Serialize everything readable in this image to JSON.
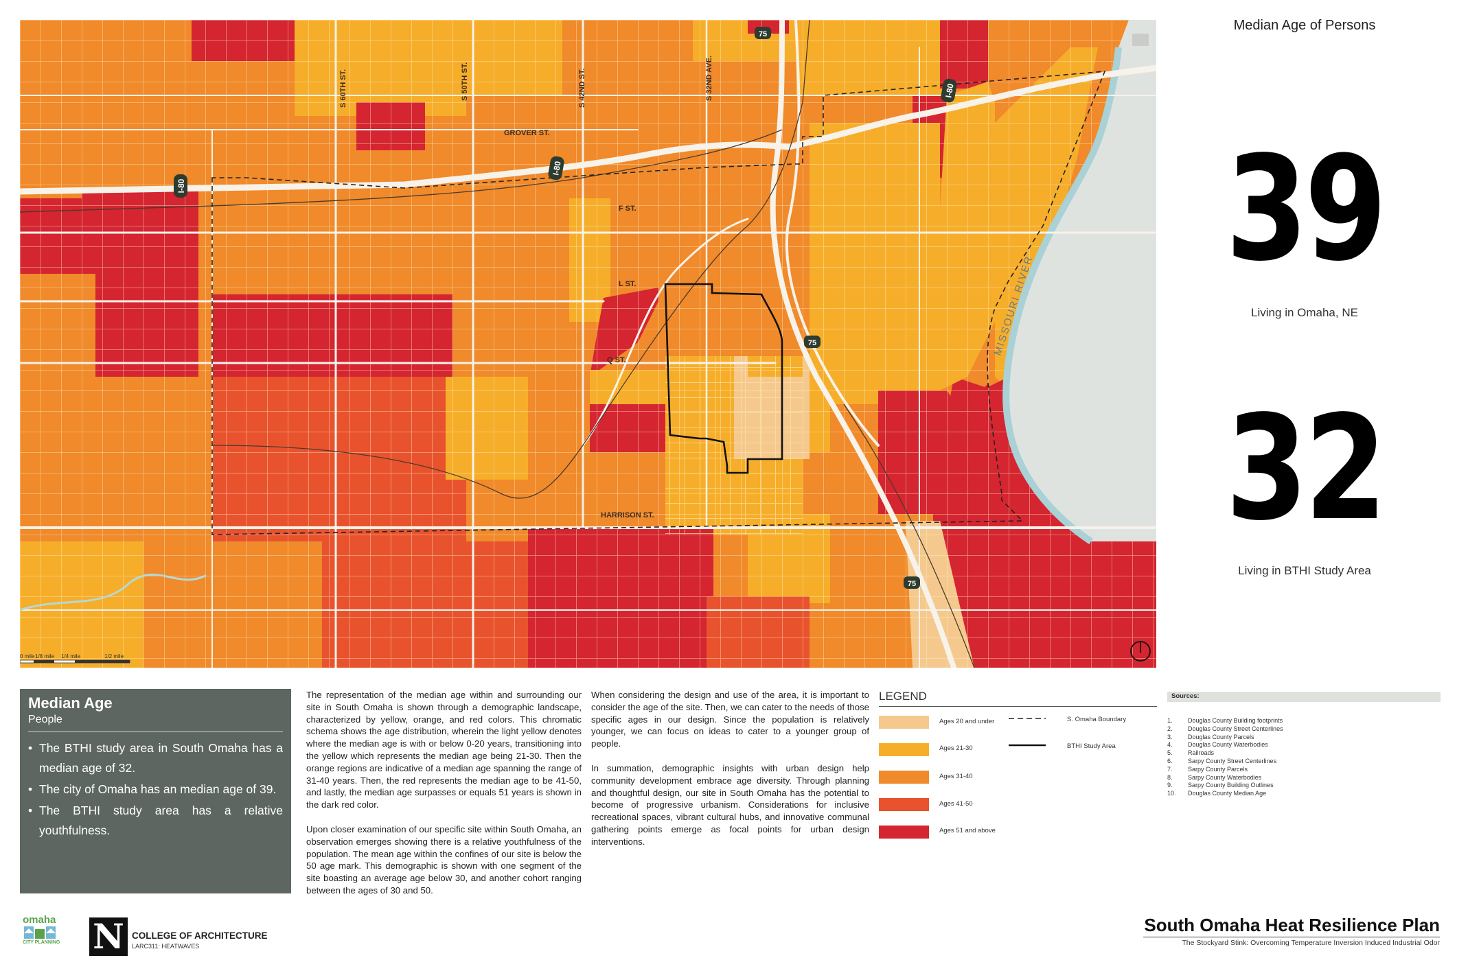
{
  "map": {
    "streets": [
      "GROVER ST.",
      "F ST.",
      "L ST.",
      "Q ST.",
      "HARRISON ST.",
      "S 60TH ST.",
      "S 50TH ST.",
      "S 42ND ST.",
      "S 32ND AVE."
    ],
    "river": "MISSOURI RIVER",
    "highways": [
      "I-80",
      "I-80",
      "I-80",
      "75",
      "75",
      "75"
    ],
    "scale_labels": [
      "0 mile",
      "1/8 mile",
      "1/4 mile",
      "1/2 mile"
    ]
  },
  "stats": {
    "title": "Median Age of Persons",
    "omaha_value": "39",
    "omaha_label": "Living in Omaha, NE",
    "bthi_value": "32",
    "bthi_label": "Living in BTHI Study Area"
  },
  "summary": {
    "title": "Median Age",
    "subtitle": "People",
    "bullets": [
      "The BTHI study area in South Omaha has a median age of 32.",
      "The city of Omaha has an median age of 39.",
      "The BTHI study area has a relative youthfulness."
    ]
  },
  "text": {
    "col1_p1": "The representation of the median age within and surrounding our site in South Omaha is shown through a demographic landscape, characterized by yellow, orange, and red colors. This chromatic schema shows the age distribution, wherein the light yellow denotes where the median age is with or below 0-20 years, transitioning into the yellow which represents the median age being 21-30. Then the orange regions are indicative of a median age spanning the range of 31-40 years. Then, the red represents the median age to be 41-50, and lastly, the median age surpasses or equals 51 years is shown in the dark red color.",
    "col1_p2": "Upon closer examination of our specific site within South Omaha, an observation emerges showing there is a relative youthfulness of the population. The mean age within the confines of our site is below the 50 age mark. This demographic is shown with one segment of the site boasting an average age below 30, and another cohort ranging between the ages of 30 and 50.",
    "col2_p1": "When considering the design and use of the area, it is important to consider the age of the site. Then, we can cater to the needs of those specific ages in our design. Since the population is relatively younger, we can focus on ideas to cater to a younger group of people.",
    "col2_p2": "In summation, demographic insights with urban design help community development embrace age diversity. Through planning and thoughtful design, our site in South Omaha has the potential to become of progressive urbanism. Considerations for inclusive recreational spaces, vibrant cultural hubs, and innovative communal gathering points emerge as focal points for urban design interventions."
  },
  "legend": {
    "title": "LEGEND",
    "items": [
      {
        "label": "Ages 20 and under",
        "color": "#f5c98e"
      },
      {
        "label": "Ages 21-30",
        "color": "#f6ae2a"
      },
      {
        "label": "Ages 31-40",
        "color": "#f08a2a"
      },
      {
        "label": "Ages  41-50",
        "color": "#e8532e"
      },
      {
        "label": "Ages 51 and above",
        "color": "#d42530"
      }
    ],
    "boundary_label": "S. Omaha Boundary",
    "study_label": "BTHI Study Area"
  },
  "sources": {
    "title": "Sources:",
    "items": [
      {
        "num": "1.",
        "text": "Douglas County Building footprints"
      },
      {
        "num": "2.",
        "text": "Douglas County Street Centerlines"
      },
      {
        "num": "3.",
        "text": "Douglas County Parcels"
      },
      {
        "num": "4.",
        "text": "Douglas County Waterbodies"
      },
      {
        "num": "5.",
        "text": "Railroads"
      },
      {
        "num": "6.",
        "text": "Sarpy County Street Centerlines"
      },
      {
        "num": "7.",
        "text": "Sarpy County Parcels"
      },
      {
        "num": "8.",
        "text": "Sarpy County Waterbodies"
      },
      {
        "num": "9.",
        "text": "Sarpy County Building Outlines"
      },
      {
        "num": "10.",
        "text": "Douglas County Median Age"
      }
    ]
  },
  "logos": {
    "omaha_word": "omaha",
    "omaha_sub": "CITY PLANNING",
    "nebraska_letter": "N",
    "college": "COLLEGE OF ARCHITECTURE",
    "course": "LARC311: HEATWAVES"
  },
  "footer": {
    "title": "South Omaha Heat Resilience Plan",
    "subtitle": "The Stockyard Stink: Overcoming Temperature Inversion Induced Industrial Odor"
  }
}
